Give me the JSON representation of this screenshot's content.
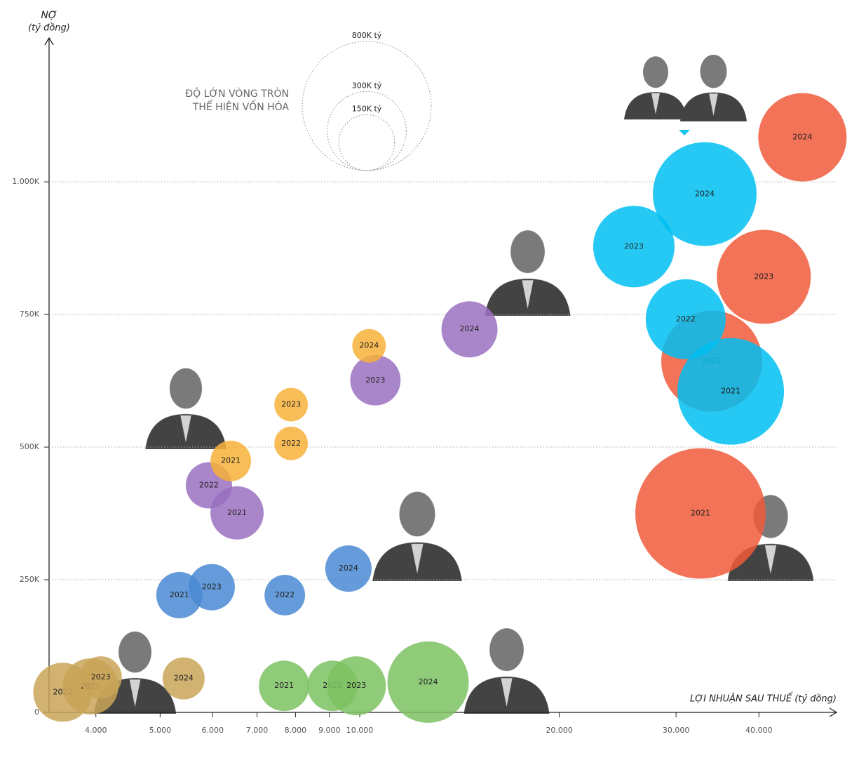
{
  "chart_data": {
    "type": "bubble",
    "y_label": [
      "NỢ",
      "(tỷ đồng)"
    ],
    "x_label": "LỢI NHUẬN SAU THUẾ (tỷ đồng)",
    "x_log": true,
    "xlim": [
      3400,
      52000
    ],
    "ylim": [
      0,
      1270000
    ],
    "xticks": [
      {
        "value": 4000,
        "label": "4.000"
      },
      {
        "value": 5000,
        "label": "5.000"
      },
      {
        "value": 6000,
        "label": "6.000"
      },
      {
        "value": 7000,
        "label": "7.000"
      },
      {
        "value": 8000,
        "label": "8.000"
      },
      {
        "value": 9000,
        "label": "9.000"
      },
      {
        "value": 10000,
        "label": "10.000"
      },
      {
        "value": 20000,
        "label": "20.000"
      },
      {
        "value": 30000,
        "label": "30.000"
      },
      {
        "value": 40000,
        "label": "40.000"
      }
    ],
    "yticks": [
      0,
      {
        "value": 250000,
        "label": "250K"
      },
      {
        "value": 500000,
        "label": "500K"
      },
      {
        "value": 750000,
        "label": "750K"
      },
      {
        "value": 1000000,
        "label": "1.000K"
      }
    ],
    "grid": true,
    "size_legend": {
      "title": [
        "ĐỘ LỚN VÒNG TRÒN",
        "THỂ HIỆN VỐN HÓA"
      ],
      "values": [
        800000,
        300000,
        150000
      ],
      "labels": [
        "800K tỷ",
        "300K tỷ",
        "150K tỷ"
      ]
    },
    "series": [
      {
        "color": "#c9a558",
        "labels": [
          "2022",
          "2021",
          "2023",
          "2024"
        ],
        "x": [
          3565,
          3925,
          4069,
          5425
        ],
        "values": [
          38000,
          49000,
          66000,
          64000
        ],
        "sizes": [
          167000,
          151000,
          85000,
          85000
        ]
      },
      {
        "color": "#4a8ad4",
        "labels": [
          "2021",
          "2023",
          "2022",
          "2024"
        ],
        "x": [
          5346,
          5981,
          7709,
          9616
        ],
        "values": [
          221000,
          236000,
          221000,
          271000
        ],
        "sizes": [
          103000,
          103000,
          79000,
          103000
        ]
      },
      {
        "color": "#9a70c0",
        "labels": [
          "2021",
          "2022",
          "2023",
          "2024"
        ],
        "x": [
          6531,
          5923,
          10560,
          14640
        ],
        "values": [
          376000,
          428000,
          626000,
          722000
        ],
        "sizes": [
          136000,
          103000,
          122000,
          151000
        ]
      },
      {
        "color": "#f8b23a",
        "labels": [
          "2021",
          "2022",
          "2023",
          "2024"
        ],
        "x": [
          6390,
          7880,
          7880,
          10330
        ],
        "values": [
          474000,
          507000,
          580000,
          691000
        ],
        "sizes": [
          79000,
          54000,
          54000,
          54000
        ]
      },
      {
        "color": "#7cc263",
        "labels": [
          "2021",
          "2022",
          "2023",
          "2024"
        ],
        "x": [
          7690,
          9100,
          9886,
          12680
        ],
        "values": [
          50000,
          50000,
          50000,
          57000
        ],
        "sizes": [
          122000,
          122000,
          167000,
          318000
        ]
      },
      {
        "color": "#f05a3a",
        "labels": [
          "2021",
          "2022",
          "2023",
          "2024"
        ],
        "x": [
          32660,
          33960,
          40690,
          46530
        ],
        "values": [
          375000,
          662000,
          821000,
          1084000
        ],
        "sizes": [
          817000,
          490000,
          424000,
          375000
        ]
      },
      {
        "color": "#00bff2",
        "labels": [
          "2021",
          "2022",
          "2023",
          "2024"
        ],
        "x": [
          36270,
          31020,
          25910,
          33140
        ],
        "values": [
          605000,
          741000,
          878000,
          977000
        ],
        "sizes": [
          546000,
          307000,
          318000,
          517000
        ]
      }
    ]
  }
}
